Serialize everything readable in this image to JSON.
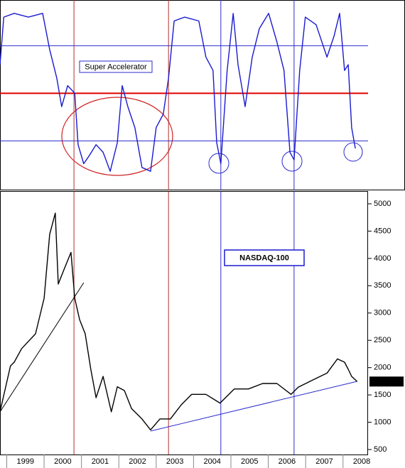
{
  "chart_data": [
    {
      "type": "line",
      "annotation": "Super Accelerator",
      "xlim": [
        1998.82,
        2008.67
      ],
      "ylim": [
        0,
        100
      ],
      "reference_lines": [
        {
          "value": 76,
          "color": "#2b2bcf"
        },
        {
          "value": 51,
          "color": "#e00000"
        },
        {
          "value": 26,
          "color": "#2b2bcf"
        }
      ],
      "vertical_lines": [
        {
          "value": 2000.8,
          "color": "#b03030"
        },
        {
          "value": 2003.33,
          "color": "#b03030"
        },
        {
          "value": 2004.73,
          "color": "#2b2bcf"
        },
        {
          "value": 2006.69,
          "color": "#2b2bcf"
        }
      ],
      "series": [
        {
          "color": "#1a1ad0",
          "x": [
            1998.82,
            1998.92,
            1999.2,
            1999.58,
            1999.96,
            2000.15,
            2000.34,
            2000.47,
            2000.63,
            2000.82,
            2000.91,
            2001.06,
            2001.2,
            2001.39,
            2001.58,
            2001.77,
            2001.96,
            2002.09,
            2002.24,
            2002.43,
            2002.62,
            2002.85,
            2003.0,
            2003.19,
            2003.33,
            2003.48,
            2003.76,
            2004.14,
            2004.33,
            2004.52,
            2004.62,
            2004.73,
            2004.9,
            2005.06,
            2005.19,
            2005.38,
            2005.57,
            2005.76,
            2006.01,
            2006.23,
            2006.42,
            2006.58,
            2006.69,
            2006.84,
            2006.99,
            2007.28,
            2007.57,
            2007.76,
            2007.91,
            2008.04,
            2008.14,
            2008.23,
            2008.33
          ],
          "values": [
            66,
            91,
            93,
            91,
            93,
            74,
            59,
            44,
            55,
            51,
            24,
            14,
            18,
            24,
            20,
            10,
            25,
            55,
            44,
            33,
            12,
            10,
            33,
            40,
            59,
            89,
            91,
            89,
            70,
            63,
            25,
            14,
            63,
            93,
            66,
            44,
            70,
            85,
            93,
            78,
            63,
            20,
            16,
            63,
            91,
            87,
            70,
            81,
            93,
            63,
            66,
            33,
            22
          ]
        }
      ]
    },
    {
      "type": "line",
      "title": "NASDAQ-100",
      "last_value": 1745.27,
      "xlim": [
        1998.82,
        2008.67
      ],
      "ylim": [
        409,
        5221
      ],
      "xticks": [
        1999,
        2000,
        2001,
        2002,
        2003,
        2004,
        2005,
        2006,
        2007,
        2008
      ],
      "yticks": [
        500,
        1000,
        1500,
        2000,
        2500,
        3000,
        3500,
        4000,
        4500,
        5000
      ],
      "vertical_lines": [
        {
          "value": 2000.8,
          "color": "#b03030"
        },
        {
          "value": 2003.33,
          "color": "#b03030"
        },
        {
          "value": 2004.73,
          "color": "#2b2bcf"
        },
        {
          "value": 2006.69,
          "color": "#2b2bcf"
        }
      ],
      "trend_lines": [
        {
          "x": [
            1998.82,
            2001.06
          ],
          "values": [
            1189,
            3555
          ],
          "color": "#000000"
        },
        {
          "x": [
            2002.85,
            2008.38
          ],
          "values": [
            838,
            1748
          ],
          "color": "#2b2bcf"
        }
      ],
      "series": [
        {
          "color": "#000000",
          "x": [
            1998.82,
            1999.1,
            1999.2,
            1999.4,
            1999.77,
            2000.0,
            2000.15,
            2000.3,
            2000.38,
            2000.53,
            2000.72,
            2000.82,
            2000.95,
            2001.1,
            2001.25,
            2001.39,
            2001.58,
            2001.8,
            2001.96,
            2002.15,
            2002.34,
            2002.62,
            2002.85,
            2003.1,
            2003.38,
            2003.67,
            2003.95,
            2004.33,
            2004.71,
            2005.09,
            2005.47,
            2005.85,
            2006.23,
            2006.61,
            2006.8,
            2007.18,
            2007.57,
            2007.85,
            2008.04,
            2008.14,
            2008.23,
            2008.38
          ],
          "values": [
            1190,
            2030,
            2100,
            2350,
            2620,
            3270,
            4440,
            4830,
            3530,
            3790,
            4110,
            3270,
            2880,
            2620,
            1970,
            1450,
            1840,
            1190,
            1650,
            1580,
            1250,
            1060,
            860,
            1060,
            1060,
            1320,
            1510,
            1510,
            1350,
            1610,
            1610,
            1710,
            1710,
            1510,
            1640,
            1770,
            1900,
            2160,
            2100,
            1970,
            1840,
            1745.27
          ]
        }
      ]
    }
  ]
}
